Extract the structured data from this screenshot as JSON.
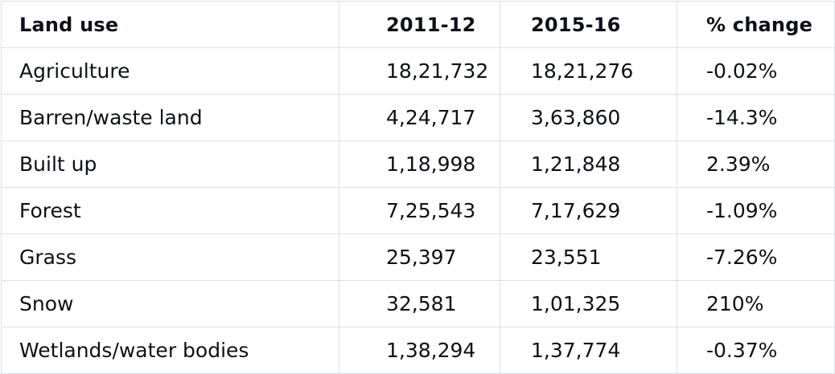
{
  "table": {
    "headers": [
      "Land use",
      "2011-12",
      "2015-16",
      "% change"
    ],
    "rows": [
      [
        "Agriculture",
        "18,21,732",
        "18,21,276",
        "-0.02%"
      ],
      [
        "Barren/waste land",
        "4,24,717",
        "3,63,860",
        "-14.3%"
      ],
      [
        "Built up",
        "1,18,998",
        "1,21,848",
        "2.39%"
      ],
      [
        "Forest",
        "7,25,543",
        "7,17,629",
        "-1.09%"
      ],
      [
        "Grass",
        "25,397",
        "23,551",
        "-7.26%"
      ],
      [
        "Snow",
        "32,581",
        "1,01,325",
        "210%"
      ],
      [
        "Wetlands/water bodies",
        "1,38,294",
        "1,37,774",
        "-0.37%"
      ]
    ]
  },
  "colors": {
    "text": "#0d1117",
    "border": "#dcdfe3",
    "background": "#ffffff"
  }
}
